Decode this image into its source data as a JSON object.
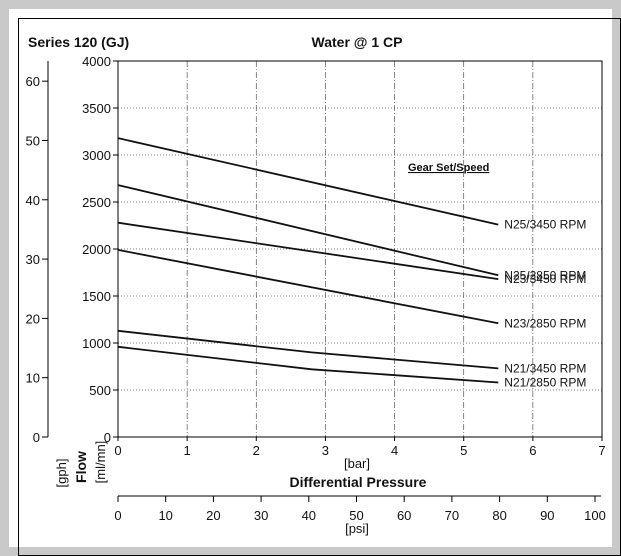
{
  "chart_data": {
    "type": "line",
    "title": "Water @ 1 CP",
    "subtitle": "Series 120 (GJ)",
    "legend_title": "Gear Set/Speed",
    "xlabel_bar": "[bar]",
    "xlabel_main": "Differential Pressure",
    "xlabel_psi": "[psi]",
    "ylabel_flow": "Flow",
    "ylabel_mlmn": "[ml/mn]",
    "ylabel_gph": "[gph]",
    "x_bar_ticks": [
      "0",
      "1",
      "2",
      "3",
      "4",
      "5",
      "6",
      "7"
    ],
    "x_psi_ticks": [
      "0",
      "10",
      "20",
      "30",
      "40",
      "50",
      "60",
      "70",
      "80",
      "90",
      "100"
    ],
    "y_mlmn_ticks": [
      "0",
      "500",
      "1000",
      "1500",
      "2000",
      "2500",
      "3000",
      "3500",
      "4000"
    ],
    "y_gph_ticks": [
      "0",
      "10",
      "20",
      "30",
      "40",
      "50",
      "60"
    ],
    "xlim_bar": [
      0,
      7
    ],
    "xlim_psi": [
      0,
      100
    ],
    "ylim_mlmn": [
      0,
      4000
    ],
    "ylim_gph": [
      0,
      63.4
    ],
    "grid": true,
    "series": [
      {
        "name": "N25/3450 RPM",
        "x": [
          0,
          5.5
        ],
        "y": [
          3180,
          2260
        ]
      },
      {
        "name": "N25/2850 RPM",
        "x": [
          0,
          5.5
        ],
        "y": [
          2680,
          1720
        ]
      },
      {
        "name": "N23/3450 RPM",
        "x": [
          0,
          5.5
        ],
        "y": [
          2280,
          1680
        ]
      },
      {
        "name": "N23/2850 RPM",
        "x": [
          0,
          5.5
        ],
        "y": [
          1990,
          1210
        ]
      },
      {
        "name": "N21/3450 RPM",
        "x": [
          0,
          2.8,
          5.5
        ],
        "y": [
          1130,
          900,
          730
        ]
      },
      {
        "name": "N21/2850 RPM",
        "x": [
          0,
          2.8,
          5.5
        ],
        "y": [
          960,
          720,
          580
        ]
      }
    ]
  }
}
